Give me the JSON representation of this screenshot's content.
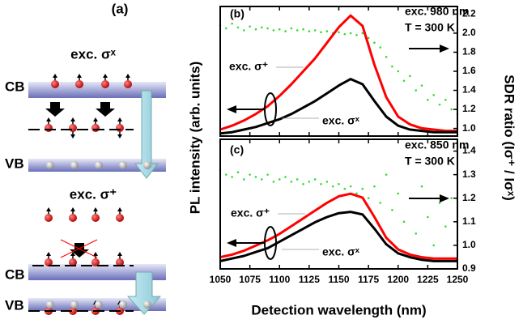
{
  "diagram": {
    "label": "(a)",
    "top_title": "exc. σˣ",
    "top_cb": "CB",
    "top_vb": "VB",
    "bottom_title": "exc. σ⁺",
    "bottom_cb": "CB",
    "bottom_vb": "VB"
  },
  "chart_data": [
    {
      "type": "line",
      "ylabel": "PL intensity (arb. units)",
      "y2label": "SDR ratio (Iσ⁺ / Iσˣ)",
      "xlim": [
        1050,
        1250
      ],
      "xticks": [
        1050,
        1075,
        1100,
        1125,
        1150,
        1175,
        1200,
        1225,
        1250
      ],
      "xtick_labels": false,
      "ylim": [
        0,
        1
      ],
      "y2lim": [
        0.92,
        2.28
      ],
      "y2ticks": [
        {
          "value": 1,
          "label": "1.0"
        },
        1.2,
        1.4,
        1.6,
        1.8,
        {
          "value": 2,
          "label": "2.0"
        },
        2.2
      ],
      "annotations": [
        {
          "text": "(b)"
        },
        {
          "text": "exc. 980 nm"
        },
        {
          "text": "T = 300 K"
        },
        {
          "text": "exc. σ⁺"
        },
        {
          "text": "exc. σˣ"
        }
      ],
      "x": [
        1050,
        1060,
        1070,
        1080,
        1090,
        1100,
        1110,
        1120,
        1130,
        1140,
        1150,
        1160,
        1170,
        1180,
        1190,
        1200,
        1210,
        1220,
        1230,
        1240,
        1250
      ],
      "series": [
        {
          "color": "#ff0000",
          "values": [
            0.05,
            0.08,
            0.12,
            0.17,
            0.23,
            0.31,
            0.4,
            0.5,
            0.6,
            0.72,
            0.84,
            0.93,
            0.85,
            0.55,
            0.3,
            0.15,
            0.09,
            0.06,
            0.05,
            0.04,
            0.04
          ]
        },
        {
          "color": "#000000",
          "values": [
            0.02,
            0.03,
            0.05,
            0.07,
            0.1,
            0.13,
            0.17,
            0.22,
            0.27,
            0.33,
            0.39,
            0.44,
            0.4,
            0.27,
            0.15,
            0.08,
            0.05,
            0.04,
            0.03,
            0.03,
            0.03
          ]
        }
      ],
      "scatter": {
        "axis": "y2",
        "color": "#33dd33",
        "x": [
          1050,
          1055,
          1060,
          1065,
          1070,
          1075,
          1080,
          1085,
          1090,
          1095,
          1100,
          1105,
          1110,
          1115,
          1120,
          1125,
          1130,
          1135,
          1140,
          1145,
          1150,
          1155,
          1160,
          1165,
          1170,
          1175,
          1180,
          1185,
          1190,
          1195,
          1200,
          1205,
          1210,
          1215,
          1220,
          1225,
          1230,
          1235,
          1240,
          1245,
          1250
        ],
        "values": [
          2.08,
          2.05,
          2.1,
          2.06,
          2.03,
          2.07,
          2.04,
          2.06,
          2.05,
          2.03,
          2.04,
          2.02,
          2.05,
          2.03,
          2.04,
          2.02,
          2.03,
          2.01,
          2.02,
          2.0,
          2.01,
          1.99,
          2.0,
          1.98,
          2.0,
          1.95,
          1.9,
          1.85,
          1.75,
          1.65,
          1.6,
          1.5,
          1.55,
          1.4,
          1.45,
          1.3,
          1.35,
          1.25,
          1.3,
          1.2,
          1.15
        ]
      }
    },
    {
      "type": "line",
      "xlabel": "Detection wavelength (nm)",
      "xlim": [
        1050,
        1250
      ],
      "xticks": [
        1050,
        1075,
        1100,
        1125,
        1150,
        1175,
        1200,
        1225,
        1250
      ],
      "xtick_labels": true,
      "ylim": [
        0,
        1
      ],
      "y2lim": [
        0.9,
        1.45
      ],
      "y2ticks": [
        0.9,
        {
          "value": 1,
          "label": "1.0"
        },
        1.1,
        1.2,
        1.3,
        1.4
      ],
      "annotations": [
        {
          "text": "(c)"
        },
        {
          "text": "exc. 850 nm"
        },
        {
          "text": "T = 300 K"
        },
        {
          "text": "exc. σ⁺"
        },
        {
          "text": "exc. σˣ"
        }
      ],
      "x": [
        1050,
        1060,
        1070,
        1080,
        1090,
        1100,
        1110,
        1120,
        1130,
        1140,
        1150,
        1160,
        1170,
        1180,
        1190,
        1200,
        1210,
        1220,
        1230,
        1240,
        1250
      ],
      "series": [
        {
          "color": "#ff0000",
          "values": [
            0.09,
            0.11,
            0.14,
            0.18,
            0.22,
            0.27,
            0.33,
            0.39,
            0.45,
            0.51,
            0.56,
            0.58,
            0.55,
            0.4,
            0.24,
            0.15,
            0.11,
            0.09,
            0.08,
            0.08,
            0.08
          ]
        },
        {
          "color": "#000000",
          "values": [
            0.06,
            0.08,
            0.1,
            0.13,
            0.16,
            0.21,
            0.26,
            0.31,
            0.36,
            0.4,
            0.43,
            0.44,
            0.42,
            0.31,
            0.19,
            0.12,
            0.09,
            0.07,
            0.06,
            0.06,
            0.06
          ]
        }
      ],
      "scatter": {
        "axis": "y2",
        "color": "#33dd33",
        "x": [
          1050,
          1055,
          1060,
          1065,
          1070,
          1075,
          1080,
          1085,
          1090,
          1095,
          1100,
          1105,
          1110,
          1115,
          1120,
          1125,
          1130,
          1135,
          1140,
          1145,
          1150,
          1155,
          1160,
          1165,
          1170,
          1175,
          1180,
          1185,
          1190,
          1195,
          1200,
          1205,
          1210,
          1215,
          1220,
          1225,
          1230,
          1235,
          1240,
          1245,
          1250
        ],
        "values": [
          1.32,
          1.3,
          1.29,
          1.31,
          1.28,
          1.3,
          1.29,
          1.28,
          1.3,
          1.27,
          1.28,
          1.29,
          1.27,
          1.28,
          1.26,
          1.27,
          1.28,
          1.26,
          1.27,
          1.25,
          1.26,
          1.24,
          1.25,
          1.22,
          1.24,
          1.2,
          1.25,
          1.18,
          1.3,
          1.15,
          1.22,
          1.1,
          1.2,
          1.05,
          1.25,
          1.12,
          1.0,
          1.18,
          1.08,
          1.2,
          1.02
        ]
      }
    }
  ]
}
